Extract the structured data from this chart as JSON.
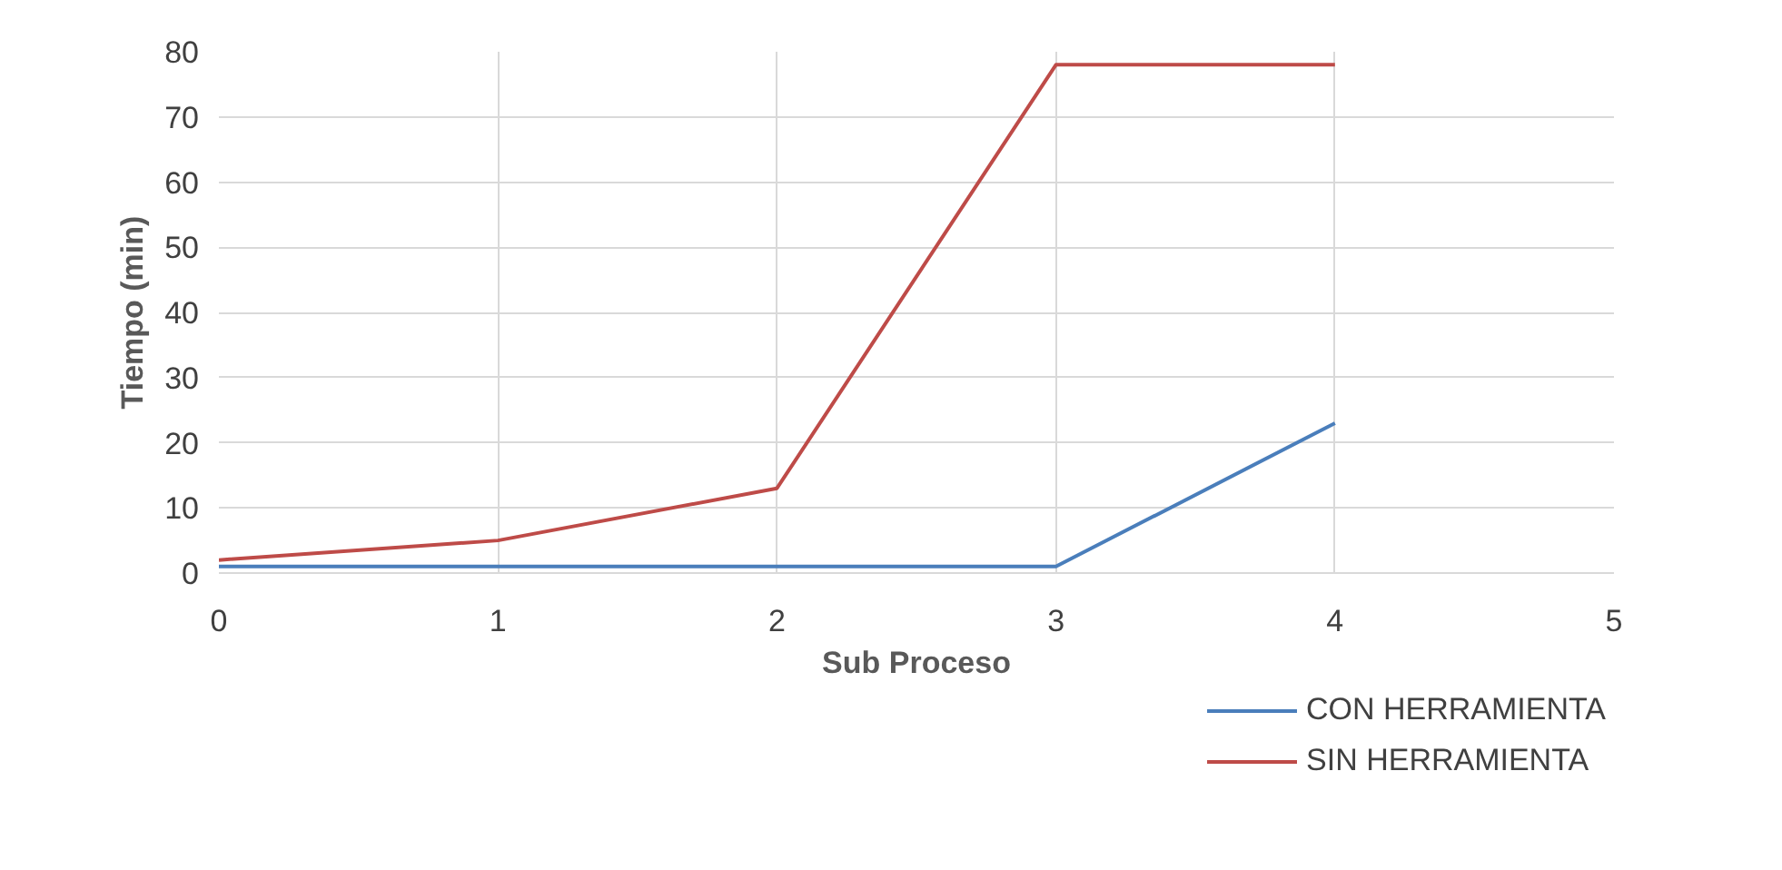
{
  "chart_data": {
    "type": "line",
    "xlabel": "Sub Proceso",
    "ylabel": "Tiempo (min)",
    "x": [
      0,
      1,
      2,
      3,
      4
    ],
    "series": [
      {
        "name": "CON HERRAMIENTA",
        "color": "#4a7ebb",
        "values": [
          1,
          1,
          1,
          1,
          23
        ]
      },
      {
        "name": "SIN HERRAMIENTA",
        "color": "#be4b48",
        "values": [
          2,
          5,
          13,
          78,
          78
        ]
      }
    ],
    "xlim": [
      0,
      5
    ],
    "xticks": [
      0,
      1,
      2,
      3,
      4,
      5
    ],
    "ylim": [
      0,
      80
    ],
    "yticks": [
      0,
      10,
      20,
      30,
      40,
      50,
      60,
      70,
      80
    ],
    "grid": true,
    "legend": "bottom right",
    "marker": "none",
    "line_style": "solid"
  }
}
